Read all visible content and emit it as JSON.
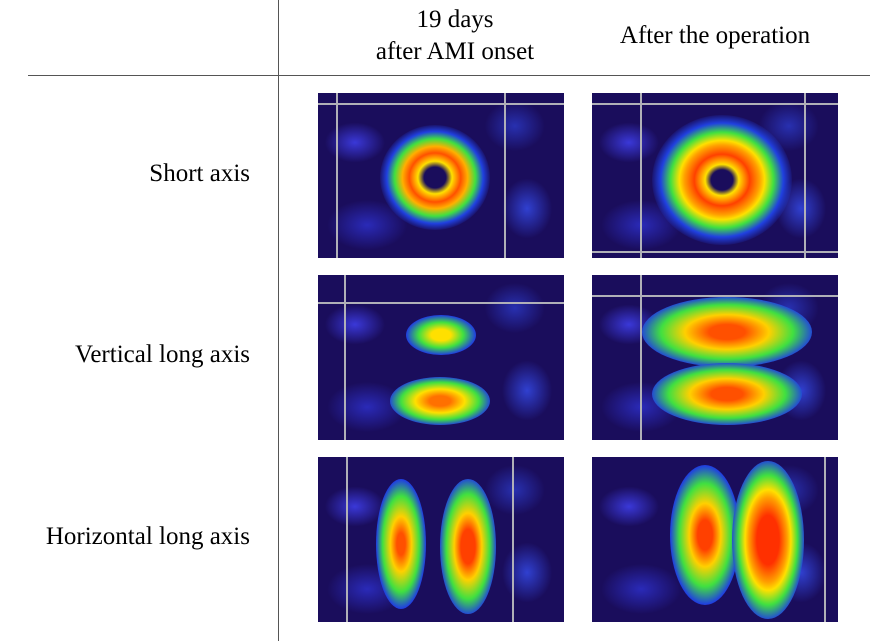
{
  "columns": [
    {
      "line1": "19 days",
      "line2": "after AMI onset"
    },
    {
      "line1": "After the operation"
    }
  ],
  "rows": [
    {
      "label": "Short axis"
    },
    {
      "label": "Vertical long axis"
    },
    {
      "label": "Horizontal long axis"
    }
  ],
  "colors": {
    "background": "#1a0d5c",
    "hot": "#ff3000",
    "warm": "#ffff00",
    "mid": "#00e000"
  }
}
